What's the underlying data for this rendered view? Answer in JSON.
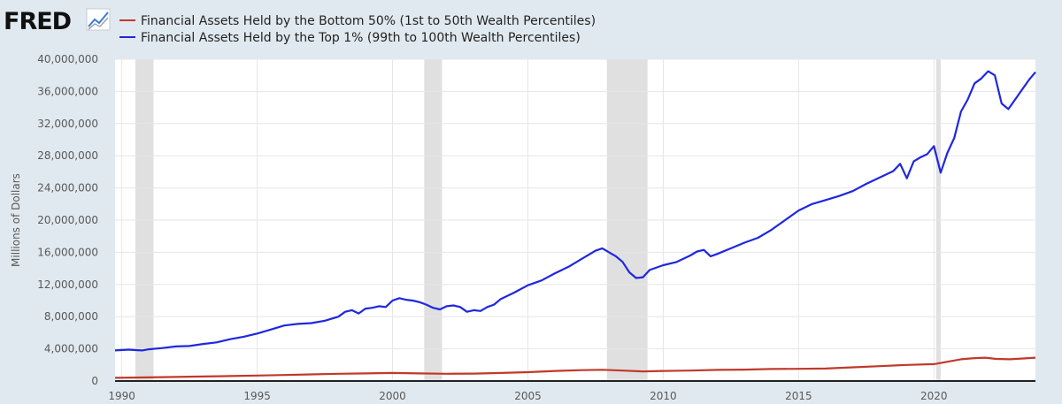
{
  "brand": "FRED",
  "chart_data": {
    "type": "line",
    "ylabel": "Millions of Dollars",
    "ylim": [
      0,
      40000000
    ],
    "xlim": [
      1989.75,
      2023.75
    ],
    "yticks": [
      0,
      4000000,
      8000000,
      12000000,
      16000000,
      20000000,
      24000000,
      28000000,
      32000000,
      36000000,
      40000000
    ],
    "ytick_labels": [
      "0",
      "4,000,000",
      "8,000,000",
      "12,000,000",
      "16,000,000",
      "20,000,000",
      "24,000,000",
      "28,000,000",
      "32,000,000",
      "36,000,000",
      "40,000,000"
    ],
    "xticks": [
      1990,
      1995,
      2000,
      2005,
      2010,
      2015,
      2020
    ],
    "xtick_labels": [
      "1990",
      "1995",
      "2000",
      "2005",
      "2010",
      "2015",
      "2020"
    ],
    "grid": true,
    "legend_placement": "top-left",
    "recessions": [
      [
        1990.5,
        1991.17
      ],
      [
        2001.17,
        2001.83
      ],
      [
        2007.92,
        2009.42
      ],
      [
        2020.08,
        2020.25
      ]
    ],
    "series": [
      {
        "name": "Financial Assets Held by the Bottom 50% (1st to 50th Wealth Percentiles)",
        "color": "#c0392b",
        "x": [
          1989.75,
          1991,
          1992,
          1993,
          1994,
          1995,
          1996,
          1997,
          1998,
          1999,
          2000,
          2001,
          2002,
          2003,
          2004,
          2005,
          2006,
          2007,
          2007.75,
          2008.5,
          2009.25,
          2010,
          2011,
          2012,
          2013,
          2014,
          2015,
          2016,
          2017,
          2018,
          2019,
          2020,
          2020.5,
          2021,
          2021.5,
          2021.9,
          2022.3,
          2022.8,
          2023.3,
          2023.75
        ],
        "y": [
          400000,
          450000,
          500000,
          560000,
          620000,
          680000,
          750000,
          820000,
          900000,
          950000,
          1000000,
          950000,
          900000,
          920000,
          1000000,
          1100000,
          1250000,
          1350000,
          1400000,
          1300000,
          1200000,
          1250000,
          1300000,
          1380000,
          1420000,
          1500000,
          1520000,
          1550000,
          1700000,
          1850000,
          2000000,
          2100000,
          2400000,
          2700000,
          2850000,
          2900000,
          2750000,
          2700000,
          2800000,
          2900000
        ]
      },
      {
        "name": "Financial Assets Held by the Top 1% (99th to 100th Wealth Percentiles)",
        "color": "#1f27e0",
        "x": [
          1989.75,
          1990.25,
          1990.5,
          1990.75,
          1991,
          1991.5,
          1992,
          1992.5,
          1993,
          1993.5,
          1994,
          1994.5,
          1995,
          1995.5,
          1996,
          1996.5,
          1997,
          1997.5,
          1998,
          1998.25,
          1998.5,
          1998.75,
          1999,
          1999.25,
          1999.5,
          1999.75,
          2000,
          2000.25,
          2000.5,
          2000.75,
          2001,
          2001.25,
          2001.5,
          2001.75,
          2002,
          2002.25,
          2002.5,
          2002.75,
          2003,
          2003.25,
          2003.5,
          2003.75,
          2004,
          2004.5,
          2005,
          2005.5,
          2006,
          2006.5,
          2007,
          2007.5,
          2007.75,
          2008,
          2008.25,
          2008.5,
          2008.75,
          2009,
          2009.25,
          2009.5,
          2010,
          2010.5,
          2011,
          2011.25,
          2011.5,
          2011.75,
          2012,
          2012.5,
          2013,
          2013.5,
          2014,
          2014.5,
          2015,
          2015.5,
          2016,
          2016.5,
          2017,
          2017.5,
          2018,
          2018.5,
          2018.75,
          2019,
          2019.25,
          2019.5,
          2019.75,
          2020,
          2020.25,
          2020.5,
          2020.75,
          2021,
          2021.25,
          2021.5,
          2021.75,
          2022,
          2022.25,
          2022.5,
          2022.75,
          2023,
          2023.25,
          2023.5,
          2023.75
        ],
        "y": [
          3800000,
          3900000,
          3850000,
          3800000,
          3950000,
          4100000,
          4300000,
          4350000,
          4600000,
          4800000,
          5200000,
          5500000,
          5900000,
          6400000,
          6900000,
          7100000,
          7200000,
          7500000,
          8000000,
          8600000,
          8800000,
          8400000,
          9000000,
          9100000,
          9300000,
          9200000,
          10000000,
          10300000,
          10100000,
          10000000,
          9800000,
          9500000,
          9100000,
          8900000,
          9300000,
          9400000,
          9200000,
          8600000,
          8800000,
          8700000,
          9200000,
          9500000,
          10200000,
          11000000,
          11900000,
          12500000,
          13400000,
          14200000,
          15200000,
          16200000,
          16500000,
          16000000,
          15500000,
          14800000,
          13500000,
          12800000,
          12900000,
          13800000,
          14400000,
          14800000,
          15600000,
          16100000,
          16300000,
          15500000,
          15800000,
          16500000,
          17200000,
          17800000,
          18800000,
          20000000,
          21200000,
          22000000,
          22500000,
          23000000,
          23600000,
          24500000,
          25300000,
          26100000,
          27000000,
          25200000,
          27300000,
          27800000,
          28200000,
          29200000,
          25900000,
          28400000,
          30200000,
          33500000,
          35000000,
          37000000,
          37600000,
          38500000,
          38000000,
          34500000,
          33800000,
          35000000,
          36200000,
          37400000,
          38400000
        ]
      }
    ]
  }
}
